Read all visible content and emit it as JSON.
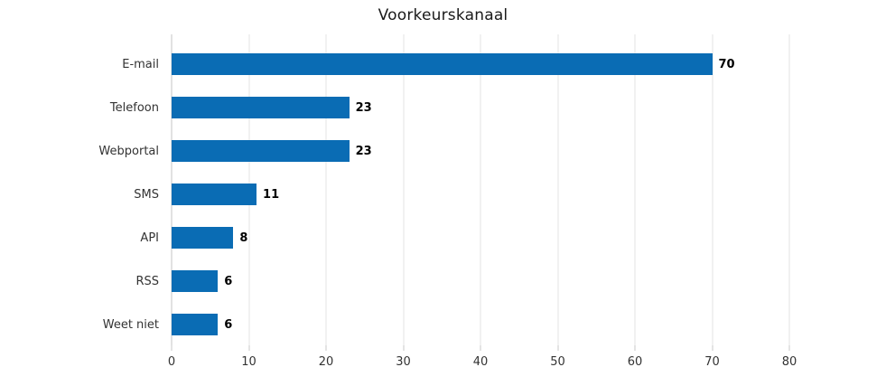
{
  "chart_data": {
    "type": "bar",
    "orientation": "horizontal",
    "title": "Voorkeurskanaal",
    "categories": [
      "E-mail",
      "Telefoon",
      "Webportal",
      "SMS",
      "API",
      "RSS",
      "Weet niet"
    ],
    "values": [
      70,
      23,
      23,
      11,
      8,
      6,
      6
    ],
    "data_labels": [
      "70",
      "23",
      "23",
      "11",
      "8",
      "6",
      "6"
    ],
    "xlabel": "",
    "ylabel": "",
    "xlim": [
      0,
      80
    ],
    "x_ticks": [
      0,
      10,
      20,
      30,
      40,
      50,
      60,
      70,
      80
    ],
    "grid": "vertical-only",
    "legend": "none",
    "colors": {
      "bar": "#0a6cb4",
      "grid_line": "#e3e3e3",
      "axis_line": "#c6c6c6",
      "tick_mark": "#c9c9c9",
      "category_label": "#333333",
      "tick_label": "#333333",
      "value_label": "#000000",
      "title": "#1a1a1a",
      "background": "#ffffff"
    }
  }
}
